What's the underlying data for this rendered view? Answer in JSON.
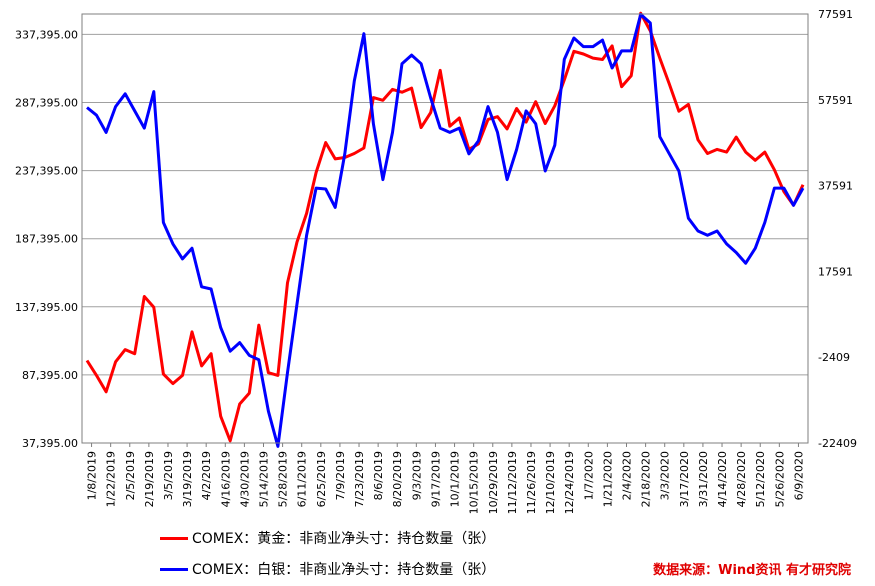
{
  "chart_data": {
    "type": "line",
    "left_axis": {
      "ticks": [
        "37,395.00",
        "87,395.00",
        "137,395.00",
        "187,395.00",
        "237,395.00",
        "287,395.00",
        "337,395.00"
      ],
      "min": 37395,
      "max": 352395
    },
    "right_axis": {
      "ticks": [
        "-22409",
        "-2409",
        "17591",
        "37591",
        "57591",
        "77591"
      ],
      "min": -22409,
      "max": 77591
    },
    "x_tick_labels": [
      "1/8/2019",
      "1/22/2019",
      "2/5/2019",
      "2/19/2019",
      "3/5/2019",
      "3/19/2019",
      "4/2/2019",
      "4/16/2019",
      "4/30/2019",
      "5/14/2019",
      "5/28/2019",
      "6/11/2019",
      "6/25/2019",
      "7/9/2019",
      "7/23/2019",
      "8/6/2019",
      "8/20/2019",
      "9/3/2019",
      "9/17/2019",
      "10/1/2019",
      "10/15/2019",
      "10/29/2019",
      "11/12/2019",
      "11/26/2019",
      "12/10/2019",
      "12/24/2019",
      "1/7/2020",
      "1/21/2020",
      "2/4/2020",
      "2/18/2020",
      "3/3/2020",
      "3/17/2020",
      "3/31/2020",
      "4/14/2020",
      "4/28/2020",
      "5/12/2020",
      "5/26/2020",
      "6/9/2020"
    ],
    "series": [
      {
        "name": "COMEX：黄金：非商业净头寸：持仓数量（张）",
        "color": "#ff0000",
        "axis": "left",
        "values": [
          98000,
          87000,
          75000,
          97000,
          106000,
          103000,
          145000,
          137000,
          88000,
          81000,
          87000,
          119000,
          94000,
          103000,
          57000,
          39000,
          66000,
          74000,
          124000,
          89000,
          87000,
          155000,
          185000,
          206000,
          236000,
          258000,
          246000,
          247000,
          250000,
          254000,
          291000,
          289000,
          297000,
          295000,
          298000,
          269000,
          280000,
          311000,
          270000,
          276000,
          253000,
          257000,
          275000,
          277000,
          268000,
          283000,
          273000,
          288000,
          272000,
          285000,
          304000,
          325000,
          323000,
          320000,
          319000,
          329000,
          299000,
          307000,
          353000,
          340000,
          320000,
          301000,
          281000,
          286000,
          260000,
          250000,
          253000,
          251000,
          262000,
          251000,
          245000,
          251000,
          238000,
          222000,
          212000,
          227000
        ]
      },
      {
        "name": "COMEX：白银：非商业净头寸：持仓数量（张）",
        "color": "#0000ff",
        "axis": "right",
        "values": [
          55800,
          54000,
          50000,
          56000,
          59000,
          55000,
          51000,
          59500,
          29000,
          24000,
          20500,
          23000,
          14000,
          13500,
          4500,
          -1000,
          1000,
          -2000,
          -3000,
          -15000,
          -23200,
          -6000,
          10000,
          26000,
          37000,
          36800,
          32500,
          45000,
          62000,
          73000,
          52000,
          39000,
          50000,
          66000,
          68000,
          66000,
          58000,
          51000,
          50000,
          51000,
          45000,
          48000,
          56000,
          50000,
          39000,
          46000,
          55000,
          52000,
          41000,
          47000,
          67000,
          72000,
          70000,
          70000,
          71500,
          65000,
          69000,
          69000,
          77500,
          75500,
          49000,
          45000,
          41000,
          30000,
          27000,
          26000,
          27000,
          24000,
          22000,
          19500,
          23000,
          29000,
          37000,
          37000,
          33000,
          37000
        ]
      }
    ]
  },
  "source_text": "数据来源：Wind资讯 有才研究院"
}
